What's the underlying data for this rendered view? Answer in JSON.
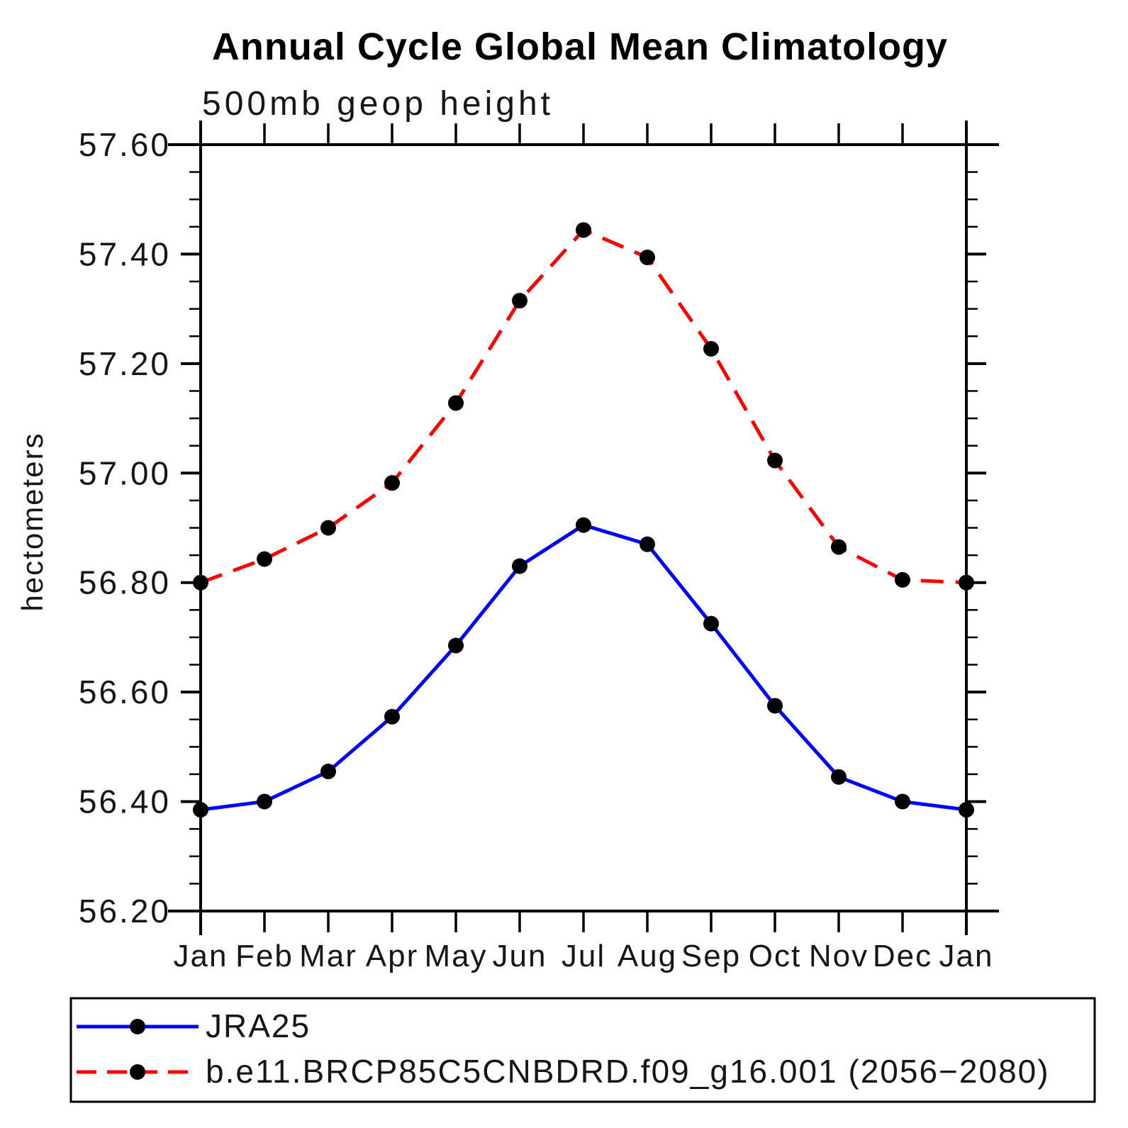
{
  "title": "Annual Cycle Global Mean Climatology",
  "subtitle": "500mb geop height",
  "ylabel": "hectometers",
  "legend": {
    "entries": [
      {
        "label": "JRA25",
        "line_color": "#0000ff",
        "line_style": "solid",
        "marker": "filled-black-circle"
      },
      {
        "label": "b.e11.BRCP85C5CNBDRD.f09_g16.001 (2056−2080)",
        "line_color": "#ff0000",
        "line_style": "dashed",
        "marker": "filled-black-circle"
      }
    ]
  },
  "chart_data": {
    "type": "line",
    "categories": [
      "Jan",
      "Feb",
      "Mar",
      "Apr",
      "May",
      "Jun",
      "Jul",
      "Aug",
      "Sep",
      "Oct",
      "Nov",
      "Dec",
      "Jan"
    ],
    "series": [
      {
        "name": "JRA25",
        "color": "#0000ff",
        "style": "solid",
        "values": [
          56.385,
          56.4,
          56.455,
          56.555,
          56.685,
          56.83,
          56.905,
          56.87,
          56.725,
          56.575,
          56.445,
          56.4,
          56.385
        ]
      },
      {
        "name": "b.e11.BRCP85C5CNBDRD.f09_g16.001 (2056−2080)",
        "color": "#ff0000",
        "style": "dashed",
        "values": [
          56.8,
          56.843,
          56.9,
          56.982,
          57.128,
          57.315,
          57.444,
          57.394,
          57.227,
          57.023,
          56.865,
          56.805,
          56.8
        ]
      }
    ],
    "title": "Annual Cycle Global Mean Climatology",
    "subtitle": "500mb geop height",
    "xlabel": "",
    "ylabel": "hectometers",
    "ylim": [
      56.2,
      57.6
    ],
    "ytick_major": 0.2,
    "ytick_minor": 0.05,
    "ytick_format": "2dp",
    "marker": "filled-black-circle",
    "marker_color": "#000000",
    "grid": false,
    "legend_position": "bottom-left-box"
  },
  "colors": {
    "background": "#ffffff",
    "axis": "#000000",
    "text": "#000000",
    "series_jra25": "#0000ff",
    "series_model": "#ff0000",
    "marker": "#000000"
  }
}
